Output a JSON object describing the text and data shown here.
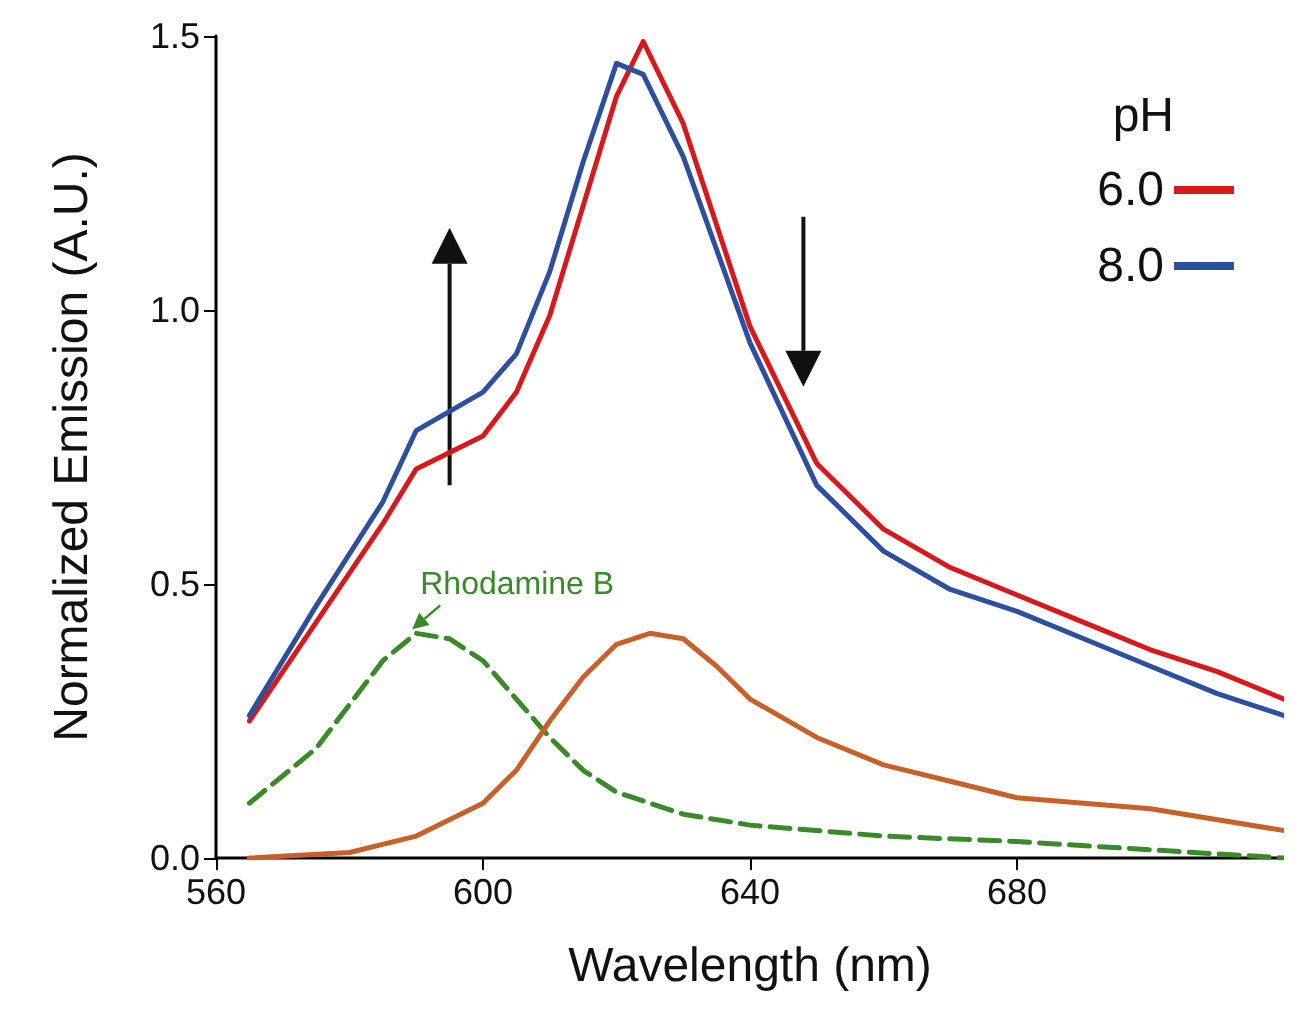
{
  "chart_data": {
    "type": "line",
    "xlabel": "Wavelength (nm)",
    "ylabel": "Normalized Emission (A.U.)",
    "legend_title": "pH",
    "legend": "top right",
    "grid": false,
    "marker": "none",
    "xlim": [
      560,
      720
    ],
    "xticks": [
      560,
      600,
      640,
      680
    ],
    "ylim": [
      0,
      1.5
    ],
    "yticks": [
      {
        "value": 0,
        "label": "0.0"
      },
      {
        "value": 0.5,
        "label": "0.5"
      },
      {
        "value": 1,
        "label": "1.0"
      },
      {
        "value": 1.5,
        "label": "1.5"
      }
    ],
    "series": [
      {
        "name": "6.0",
        "color": "#d7191c",
        "line_style": "solid",
        "x": [
          565,
          575,
          585,
          590,
          600,
          605,
          610,
          615,
          620,
          624,
          630,
          640,
          650,
          660,
          670,
          680,
          690,
          700,
          710,
          720
        ],
        "values": [
          0.25,
          0.43,
          0.61,
          0.71,
          0.77,
          0.85,
          0.99,
          1.19,
          1.39,
          1.49,
          1.34,
          0.97,
          0.72,
          0.6,
          0.53,
          0.48,
          0.43,
          0.38,
          0.34,
          0.29
        ]
      },
      {
        "name": "8.0",
        "color": "#2e4fa0",
        "line_style": "solid",
        "x": [
          565,
          575,
          585,
          590,
          600,
          605,
          610,
          615,
          620,
          624,
          630,
          640,
          650,
          660,
          670,
          680,
          690,
          700,
          710,
          720
        ],
        "values": [
          0.26,
          0.46,
          0.65,
          0.78,
          0.85,
          0.92,
          1.07,
          1.27,
          1.45,
          1.43,
          1.28,
          0.94,
          0.68,
          0.56,
          0.49,
          0.45,
          0.4,
          0.35,
          0.3,
          0.26
        ]
      },
      {
        "color": "#3a8a2a",
        "line_style": "dashed",
        "x": [
          565,
          575,
          580,
          585,
          590,
          595,
          600,
          605,
          610,
          615,
          620,
          630,
          640,
          660,
          680,
          700,
          720
        ],
        "values": [
          0.1,
          0.2,
          0.28,
          0.36,
          0.41,
          0.4,
          0.36,
          0.29,
          0.22,
          0.16,
          0.12,
          0.08,
          0.06,
          0.04,
          0.03,
          0.015,
          0
        ]
      },
      {
        "color": "#c8602a",
        "line_style": "solid",
        "x": [
          565,
          580,
          590,
          600,
          605,
          610,
          615,
          620,
          625,
          630,
          635,
          640,
          650,
          660,
          670,
          680,
          700,
          720
        ],
        "values": [
          0,
          0.01,
          0.04,
          0.1,
          0.16,
          0.25,
          0.33,
          0.39,
          0.41,
          0.4,
          0.35,
          0.29,
          0.22,
          0.17,
          0.14,
          0.11,
          0.09,
          0.05
        ]
      }
    ],
    "annotations": [
      {
        "text": "Rhodamine B",
        "x": 590,
        "y": 0.41
      }
    ]
  }
}
